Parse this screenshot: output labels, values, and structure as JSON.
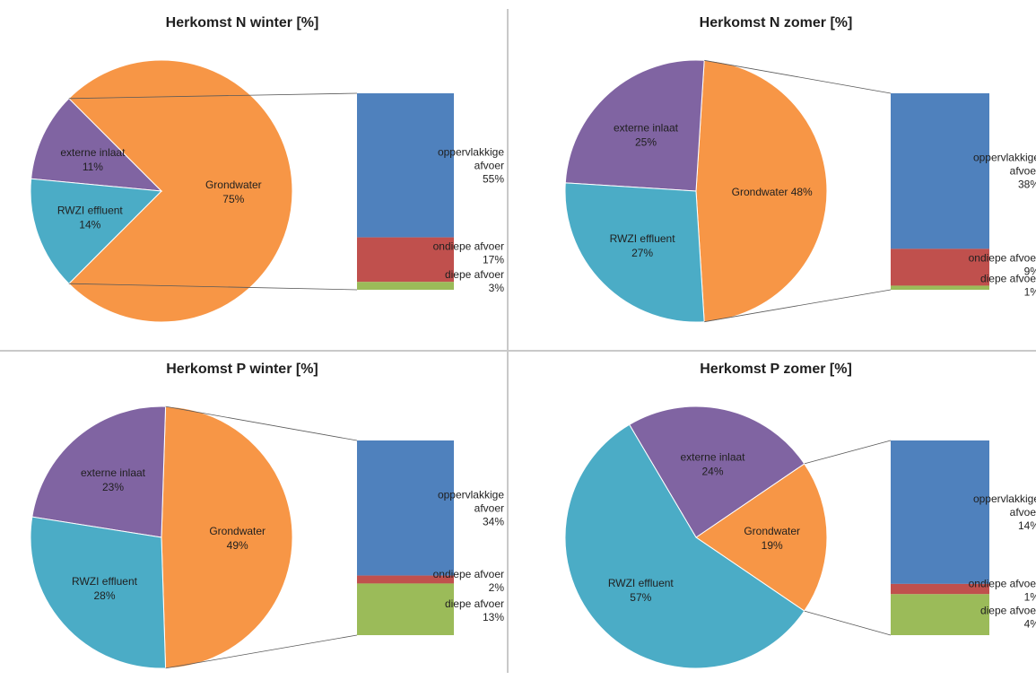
{
  "colors": {
    "grondwater": "#F79646",
    "rwzi": "#4BACC6",
    "extern": "#8064A2",
    "oppervlakkig": "#4F81BD",
    "ondiep": "#C0504D",
    "diep": "#9BBB59",
    "connector": "#595959"
  },
  "chart_data": [
    {
      "type": "pie",
      "title": "Herkomst N winter [%]",
      "slices": [
        {
          "label": "Grondwater",
          "value": 75,
          "text": "75%"
        },
        {
          "label": "externe inlaat",
          "value": 11,
          "text": "11%"
        },
        {
          "label": "RWZI effluent",
          "value": 14,
          "text": "14%"
        }
      ],
      "breakdown_of": "Grondwater",
      "breakdown": [
        {
          "label": "oppervlakkige afvoer",
          "value": 55,
          "text": "55%"
        },
        {
          "label": "ondiepe afvoer",
          "value": 17,
          "text": "17%"
        },
        {
          "label": "diepe afvoer",
          "value": 3,
          "text": "3%"
        }
      ]
    },
    {
      "type": "pie",
      "title": "Herkomst N zomer [%]",
      "slices": [
        {
          "label": "Grondwater",
          "value": 48,
          "text": "48%"
        },
        {
          "label": "externe inlaat",
          "value": 25,
          "text": "25%"
        },
        {
          "label": "RWZI effluent",
          "value": 27,
          "text": "27%"
        }
      ],
      "breakdown_of": "Grondwater",
      "breakdown": [
        {
          "label": "oppervlakkige afvoer",
          "value": 38,
          "text": "38%"
        },
        {
          "label": "ondiepe afvoer",
          "value": 9,
          "text": "9%"
        },
        {
          "label": "diepe afvoer",
          "value": 1,
          "text": "1%"
        }
      ]
    },
    {
      "type": "pie",
      "title": "Herkomst P winter [%]",
      "slices": [
        {
          "label": "Grondwater",
          "value": 49,
          "text": "49%"
        },
        {
          "label": "externe inlaat",
          "value": 23,
          "text": "23%"
        },
        {
          "label": "RWZI effluent",
          "value": 28,
          "text": "28%"
        }
      ],
      "breakdown_of": "Grondwater",
      "breakdown": [
        {
          "label": "oppervlakkige afvoer",
          "value": 34,
          "text": "34%"
        },
        {
          "label": "ondiepe afvoer",
          "value": 2,
          "text": "2%"
        },
        {
          "label": "diepe afvoer",
          "value": 13,
          "text": "13%"
        }
      ]
    },
    {
      "type": "pie",
      "title": "Herkomst P zomer [%]",
      "slices": [
        {
          "label": "Grondwater",
          "value": 19,
          "text": "19%"
        },
        {
          "label": "externe inlaat",
          "value": 24,
          "text": "24%"
        },
        {
          "label": "RWZI effluent",
          "value": 57,
          "text": "57%"
        }
      ],
      "breakdown_of": "Grondwater",
      "breakdown": [
        {
          "label": "oppervlakkige afvoer",
          "value": 14,
          "text": "14%"
        },
        {
          "label": "ondiepe afvoer",
          "value": 1,
          "text": "1%"
        },
        {
          "label": "diepe afvoer",
          "value": 4,
          "text": "4%"
        }
      ]
    }
  ]
}
